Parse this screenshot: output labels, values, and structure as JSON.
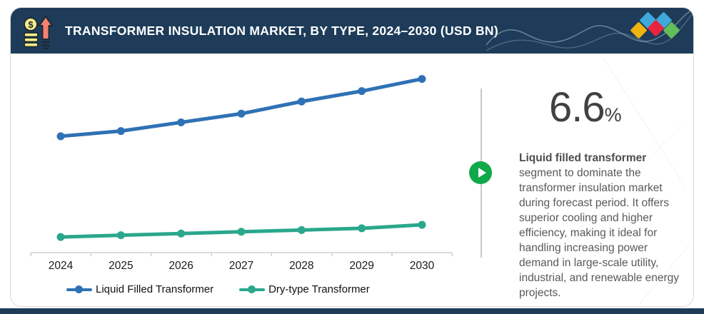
{
  "page": {
    "accent_navy": "#1e3c59",
    "card_bg": "#ffffff",
    "border_color": "#dcdcdc"
  },
  "header": {
    "title": "TRANSFORMER INSULATION MARKET, BY TYPE, 2024–2030 (USD BN)",
    "icon_name": "money-growth-icon",
    "logo_name": "diamonds-logo",
    "logo_colors": {
      "yellow": "#efb310",
      "blue": "#3fa9dc",
      "red": "#e8243f",
      "green": "#63bd59"
    }
  },
  "chart_data": {
    "type": "line",
    "title": "Transformer Insulation Market, By Type, 2024–2030 (USD BN)",
    "categories": [
      "2024",
      "2025",
      "2026",
      "2027",
      "2028",
      "2029",
      "2030"
    ],
    "series": [
      {
        "name": "Liquid Filled Transformer",
        "color": "#2f71b5",
        "values": [
          3.35,
          3.5,
          3.75,
          4.0,
          4.35,
          4.65,
          5.0
        ]
      },
      {
        "name": "Dry-type Transformer",
        "color": "#2aa78c",
        "values": [
          0.45,
          0.5,
          0.55,
          0.6,
          0.65,
          0.7,
          0.8
        ]
      }
    ],
    "xlabel": "",
    "ylabel": "",
    "ylim": [
      0,
      5.3
    ],
    "grid": false,
    "y_axis_visible": false,
    "legend_position": "bottom",
    "note": "y-axis unlabeled in source; values estimated from point heights (USD BN)"
  },
  "insight": {
    "value": "6.6",
    "unit": "%",
    "bold_lead": "Liquid filled transformer",
    "text_rest": " segment to dominate the transformer insulation market during forecast period. It offers superior cooling and higher efficiency, making it ideal for handling increasing power demand in large-scale utility, industrial, and renewable energy projects."
  },
  "media": {
    "play_button_color": "#0fa94a",
    "play_icon": "play-icon"
  }
}
